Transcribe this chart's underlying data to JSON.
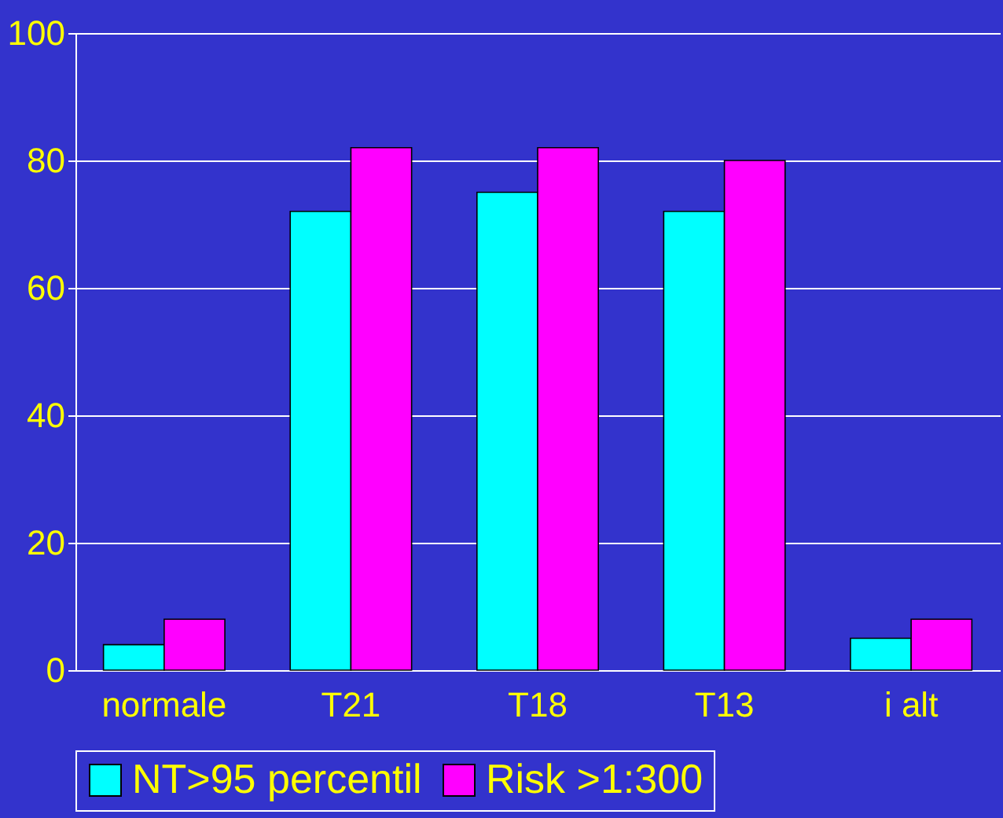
{
  "chart_data": {
    "type": "bar",
    "categories": [
      "normale",
      "T21",
      "T18",
      "T13",
      "i alt"
    ],
    "series": [
      {
        "name": "NT>95 percentil",
        "color": "#00ffff",
        "values": [
          4,
          72,
          75,
          72,
          5
        ]
      },
      {
        "name": "Risk >1:300",
        "color": "#ff00ff",
        "values": [
          8,
          82,
          82,
          80,
          8
        ]
      }
    ],
    "ylim": [
      0,
      100
    ],
    "yticks": [
      0,
      20,
      40,
      60,
      80,
      100
    ],
    "grid": "y",
    "legend": "bottom"
  }
}
